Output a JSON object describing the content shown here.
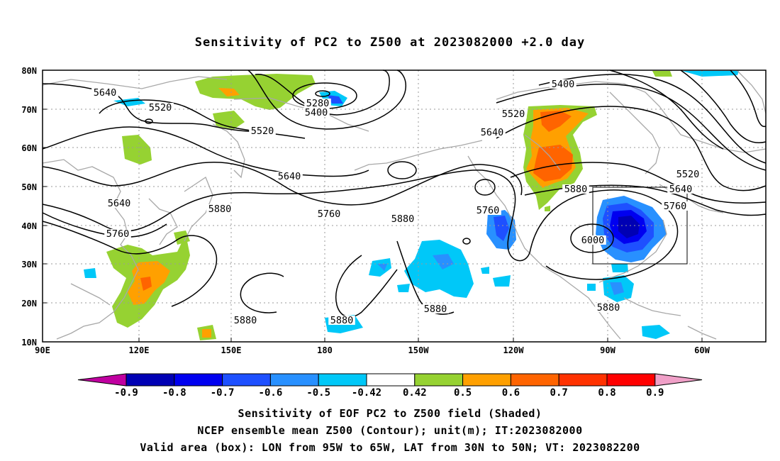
{
  "title": "Sensitivity of PC2 to Z500 at 2023082000 +2.0 day",
  "lat_labels": [
    "80N",
    "70N",
    "60N",
    "50N",
    "40N",
    "30N",
    "20N",
    "10N"
  ],
  "lon_labels": [
    "90E",
    "120E",
    "150E",
    "180",
    "150W",
    "120W",
    "90W",
    "60W"
  ],
  "colorbar": {
    "labels": [
      "-0.9",
      "-0.8",
      "-0.7",
      "-0.6",
      "-0.5",
      "-0.42",
      "0.42",
      "0.5",
      "0.6",
      "0.7",
      "0.8",
      "0.9"
    ],
    "colors": [
      "#c000a0",
      "#0000b4",
      "#0000f0",
      "#1e50ff",
      "#2890ff",
      "#00c8f8",
      "#ffffff",
      "#96d232",
      "#ffa000",
      "#ff6400",
      "#ff3200",
      "#ff0000",
      "#f0a0c8"
    ]
  },
  "contour_labels": [
    {
      "text": "5640"
    },
    {
      "text": "5520"
    },
    {
      "text": "5280"
    },
    {
      "text": "5400"
    },
    {
      "text": "5520"
    },
    {
      "text": "5640"
    },
    {
      "text": "5640"
    },
    {
      "text": "5760"
    },
    {
      "text": "5880"
    },
    {
      "text": "5760"
    },
    {
      "text": "5880"
    },
    {
      "text": "5760"
    },
    {
      "text": "5880"
    },
    {
      "text": "6000"
    },
    {
      "text": "5880"
    },
    {
      "text": "5880"
    },
    {
      "text": "5880"
    },
    {
      "text": "5400"
    },
    {
      "text": "5520"
    },
    {
      "text": "5640"
    },
    {
      "text": "5520"
    },
    {
      "text": "5640"
    },
    {
      "text": "5760"
    },
    {
      "text": "5880"
    }
  ],
  "colors": {
    "contour": "#000000",
    "coastline": "#a8a8a8",
    "grid": "#9a9a9a",
    "box": "#000000"
  },
  "captions": [
    "Sensitivity of EOF PC2 to Z500 field (Shaded)",
    "NCEP ensemble mean Z500 (Contour); unit(m); IT:2023082000",
    "Valid area (box): LON from 95W to 65W, LAT from 30N to 50N; VT: 2023082200"
  ]
}
